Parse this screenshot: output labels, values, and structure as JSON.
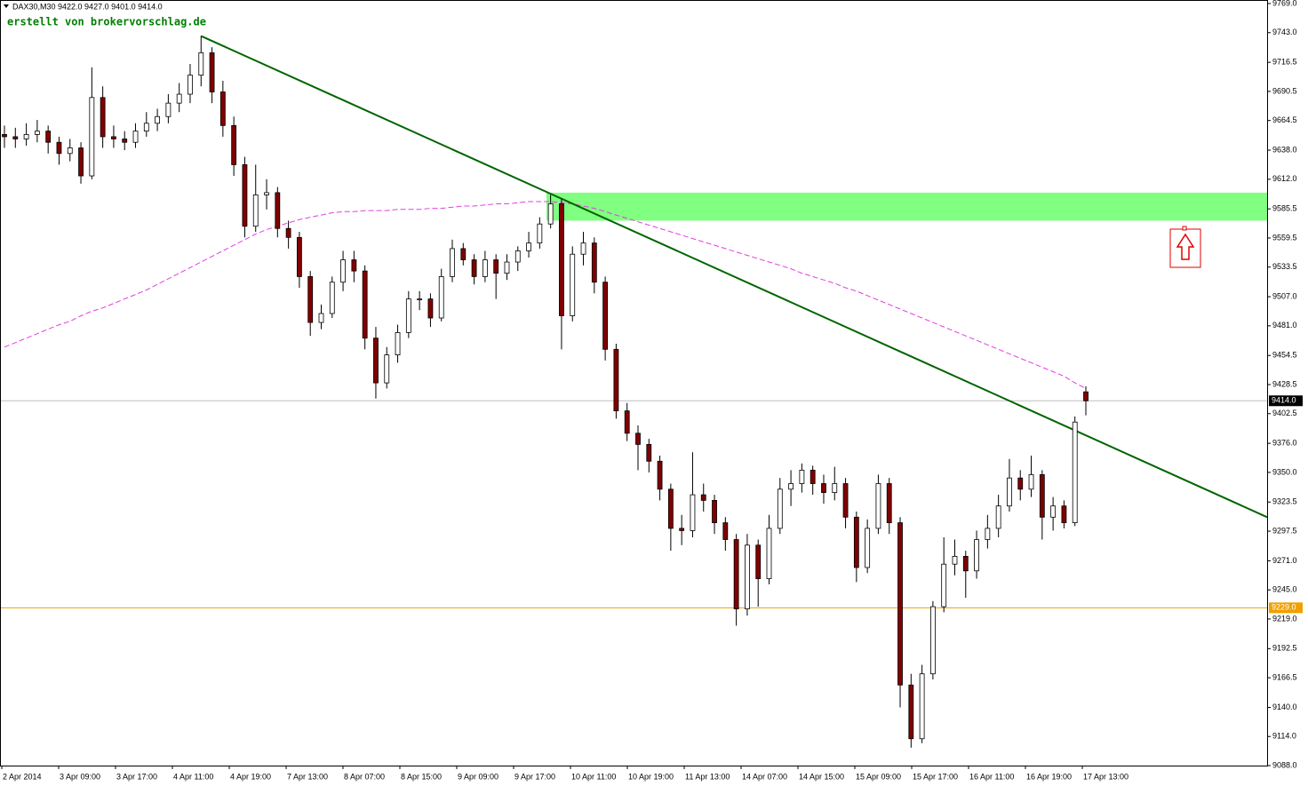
{
  "chart_data": {
    "type": "candlestick",
    "header": "DAX30,M30  9422.0 9427.0 9401.0 9414.0",
    "watermark": "erstellt von brokervorschlag.de",
    "up_color": "#ffffff",
    "down_color": "#800000",
    "wick_color": "#000000",
    "ma_color": "#e040e0",
    "trend_color": "#006400",
    "zone_color": "#80ff80",
    "hline_color": "#f0a000",
    "ylim": [
      9088,
      9769
    ],
    "yticks": [
      {
        "value": 9769,
        "label": "9769.0"
      },
      {
        "value": 9743,
        "label": "9743.0"
      },
      9716.5,
      9690.5,
      9664.5,
      {
        "value": 9638,
        "label": "9638.0"
      },
      {
        "value": 9612,
        "label": "9612.0"
      },
      9585.5,
      9559.5,
      9533.5,
      {
        "value": 9507,
        "label": "9507.0"
      },
      {
        "value": 9481,
        "label": "9481.0"
      },
      9454.5,
      9428.5,
      9402.5,
      {
        "value": 9376,
        "label": "9376.0"
      },
      {
        "value": 9350,
        "label": "9350.0"
      },
      9323.5,
      9297.5,
      {
        "value": 9271,
        "label": "9271.0"
      },
      {
        "value": 9245,
        "label": "9245.0"
      },
      {
        "value": 9219,
        "label": "9219.0"
      },
      9192.5,
      9166.5,
      {
        "value": 9140,
        "label": "9140.0"
      },
      {
        "value": 9114,
        "label": "9114.0"
      },
      {
        "value": 9088,
        "label": "9088.0"
      }
    ],
    "x_labels": [
      "2 Apr 2014",
      "3 Apr 09:00",
      "3 Apr 17:00",
      "4 Apr 11:00",
      "4 Apr 19:00",
      "7 Apr 13:00",
      "8 Apr 07:00",
      "8 Apr 15:00",
      "9 Apr 09:00",
      "9 Apr 17:00",
      "10 Apr 11:00",
      "10 Apr 19:00",
      "11 Apr 13:00",
      "14 Apr 07:00",
      "14 Apr 15:00",
      "15 Apr 09:00",
      "15 Apr 17:00",
      "16 Apr 11:00",
      "16 Apr 19:00",
      "17 Apr 13:00"
    ],
    "last_price": {
      "value": 9414,
      "label": "9414.0"
    },
    "hline": {
      "value": 9229,
      "label": "9229.0"
    },
    "zone": {
      "low": 9575,
      "high": 9600
    },
    "trendline": {
      "start": 9740,
      "end": 9310
    },
    "ohlc": [
      [
        9652,
        9660,
        9640,
        9650
      ],
      [
        9650,
        9658,
        9640,
        9648
      ],
      [
        9648,
        9662,
        9642,
        9652
      ],
      [
        9652,
        9665,
        9645,
        9655
      ],
      [
        9655,
        9660,
        9635,
        9645
      ],
      [
        9645,
        9650,
        9625,
        9635
      ],
      [
        9635,
        9648,
        9628,
        9640
      ],
      [
        9640,
        9645,
        9608,
        9615
      ],
      [
        9615,
        9712,
        9612,
        9685
      ],
      [
        9685,
        9695,
        9640,
        9650
      ],
      [
        9650,
        9660,
        9640,
        9648
      ],
      [
        9648,
        9655,
        9638,
        9645
      ],
      [
        9645,
        9662,
        9640,
        9655
      ],
      [
        9655,
        9672,
        9650,
        9662
      ],
      [
        9662,
        9675,
        9655,
        9668
      ],
      [
        9668,
        9688,
        9662,
        9680
      ],
      [
        9680,
        9698,
        9672,
        9688
      ],
      [
        9688,
        9715,
        9680,
        9705
      ],
      [
        9705,
        9740,
        9695,
        9725
      ],
      [
        9725,
        9730,
        9680,
        9690
      ],
      [
        9690,
        9700,
        9650,
        9660
      ],
      [
        9660,
        9668,
        9615,
        9625
      ],
      [
        9625,
        9632,
        9560,
        9570
      ],
      [
        9570,
        9625,
        9565,
        9598
      ],
      [
        9598,
        9612,
        9585,
        9600
      ],
      [
        9600,
        9605,
        9560,
        9568
      ],
      [
        9568,
        9575,
        9550,
        9560
      ],
      [
        9560,
        9565,
        9515,
        9525
      ],
      [
        9525,
        9530,
        9472,
        9484
      ],
      [
        9484,
        9500,
        9478,
        9492
      ],
      [
        9492,
        9525,
        9488,
        9520
      ],
      [
        9520,
        9548,
        9512,
        9540
      ],
      [
        9540,
        9548,
        9520,
        9530
      ],
      [
        9530,
        9535,
        9460,
        9470
      ],
      [
        9470,
        9480,
        9416,
        9430
      ],
      [
        9430,
        9462,
        9425,
        9455
      ],
      [
        9455,
        9482,
        9448,
        9475
      ],
      [
        9475,
        9512,
        9470,
        9505
      ],
      [
        9505,
        9512,
        9495,
        9505
      ],
      [
        9505,
        9510,
        9480,
        9488
      ],
      [
        9488,
        9532,
        9485,
        9525
      ],
      [
        9525,
        9558,
        9520,
        9550
      ],
      [
        9550,
        9555,
        9535,
        9540
      ],
      [
        9540,
        9545,
        9518,
        9525
      ],
      [
        9525,
        9548,
        9520,
        9540
      ],
      [
        9540,
        9545,
        9505,
        9528
      ],
      [
        9528,
        9545,
        9522,
        9538
      ],
      [
        9538,
        9552,
        9530,
        9548
      ],
      [
        9548,
        9565,
        9542,
        9555
      ],
      [
        9555,
        9578,
        9550,
        9572
      ],
      [
        9572,
        9598,
        9568,
        9590
      ],
      [
        9590,
        9595,
        9460,
        9490
      ],
      [
        9490,
        9552,
        9485,
        9545
      ],
      [
        9545,
        9565,
        9535,
        9555
      ],
      [
        9555,
        9560,
        9510,
        9520
      ],
      [
        9520,
        9525,
        9450,
        9460
      ],
      [
        9460,
        9465,
        9398,
        9405
      ],
      [
        9405,
        9412,
        9378,
        9385
      ],
      [
        9385,
        9392,
        9352,
        9375
      ],
      [
        9375,
        9380,
        9350,
        9360
      ],
      [
        9360,
        9365,
        9325,
        9335
      ],
      [
        9335,
        9340,
        9280,
        9300
      ],
      [
        9300,
        9312,
        9285,
        9298
      ],
      [
        9298,
        9368,
        9292,
        9330
      ],
      [
        9330,
        9340,
        9315,
        9325
      ],
      [
        9325,
        9330,
        9295,
        9305
      ],
      [
        9305,
        9310,
        9280,
        9290
      ],
      [
        9290,
        9295,
        9213,
        9228
      ],
      [
        9228,
        9295,
        9222,
        9285
      ],
      [
        9285,
        9290,
        9230,
        9255
      ],
      [
        9255,
        9312,
        9250,
        9300
      ],
      [
        9300,
        9345,
        9295,
        9335
      ],
      [
        9335,
        9352,
        9320,
        9340
      ],
      [
        9340,
        9358,
        9332,
        9352
      ],
      [
        9352,
        9356,
        9330,
        9340
      ],
      [
        9340,
        9348,
        9322,
        9332
      ],
      [
        9332,
        9355,
        9325,
        9340
      ],
      [
        9340,
        9345,
        9300,
        9310
      ],
      [
        9310,
        9315,
        9252,
        9265
      ],
      [
        9265,
        9308,
        9260,
        9300
      ],
      [
        9300,
        9348,
        9295,
        9340
      ],
      [
        9340,
        9345,
        9295,
        9305
      ],
      [
        9305,
        9310,
        9140,
        9160
      ],
      [
        9160,
        9170,
        9104,
        9112
      ],
      [
        9112,
        9178,
        9108,
        9170
      ],
      [
        9170,
        9235,
        9165,
        9230
      ],
      [
        9230,
        9292,
        9225,
        9268
      ],
      [
        9268,
        9290,
        9258,
        9275
      ],
      [
        9275,
        9280,
        9238,
        9262
      ],
      [
        9262,
        9298,
        9255,
        9290
      ],
      [
        9290,
        9312,
        9282,
        9300
      ],
      [
        9300,
        9330,
        9292,
        9320
      ],
      [
        9320,
        9362,
        9315,
        9345
      ],
      [
        9345,
        9352,
        9325,
        9335
      ],
      [
        9335,
        9365,
        9328,
        9348
      ],
      [
        9348,
        9352,
        9290,
        9310
      ],
      [
        9310,
        9328,
        9298,
        9320
      ],
      [
        9320,
        9325,
        9300,
        9305
      ],
      [
        9305,
        9400,
        9302,
        9395
      ],
      [
        9422,
        9427,
        9401,
        9414
      ]
    ],
    "ma": [
      9462,
      9466,
      9470,
      9474,
      9478,
      9482,
      9485,
      9490,
      9494,
      9497,
      9501,
      9505,
      9509,
      9513,
      9518,
      9523,
      9528,
      9533,
      9538,
      9543,
      9548,
      9553,
      9558,
      9563,
      9567,
      9570,
      9573,
      9576,
      9578,
      9580,
      9582,
      9583,
      9583,
      9584,
      9584,
      9584,
      9585,
      9585,
      9585,
      9586,
      9586,
      9587,
      9588,
      9588,
      9589,
      9590,
      9590,
      9591,
      9592,
      9592,
      9592,
      9591,
      9590,
      9588,
      9586,
      9583,
      9580,
      9577,
      9574,
      9571,
      9568,
      9565,
      9562,
      9559,
      9556,
      9553,
      9550,
      9547,
      9544,
      9541,
      9538,
      9535,
      9532,
      9528,
      9525,
      9522,
      9519,
      9515,
      9512,
      9508,
      9504,
      9500,
      9496,
      9492,
      9488,
      9484,
      9480,
      9476,
      9472,
      9468,
      9464,
      9460,
      9456,
      9452,
      9448,
      9444,
      9440,
      9436,
      9430,
      9425
    ]
  }
}
